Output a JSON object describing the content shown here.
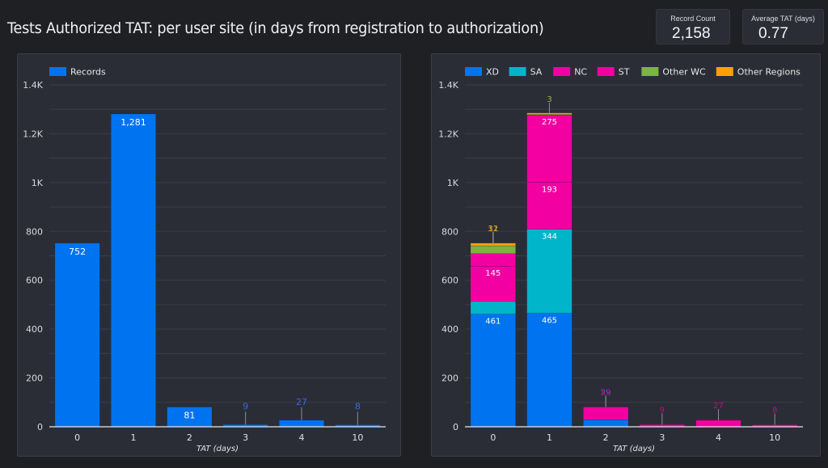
{
  "header": {
    "title": "Tests Authorized TAT: per user site (in days from registration to authorization)"
  },
  "kpis": [
    {
      "label": "Record Count",
      "value": "2,158"
    },
    {
      "label": "Average TAT (days)",
      "value": "0.77"
    }
  ],
  "colors": {
    "XD": "#0074f0",
    "SA": "#00b5c9",
    "NC": "#f200a2",
    "ST": "#f200a2",
    "Other WC": "#7cb342",
    "Other Regions": "#ffa000",
    "Records": "#0074f0"
  },
  "chart_data": [
    {
      "type": "bar",
      "title": "",
      "categories": [
        "0",
        "1",
        "2",
        "3",
        "4",
        "10"
      ],
      "series": [
        {
          "name": "Records",
          "values": [
            752,
            1281,
            81,
            9,
            27,
            8
          ]
        }
      ],
      "xlabel": "TAT (days)",
      "ylabel": "",
      "ylim": [
        0,
        1400
      ],
      "yticks": [
        0,
        200,
        400,
        600,
        800,
        1000,
        1200,
        1400
      ],
      "ytick_labels": [
        "0",
        "200",
        "400",
        "600",
        "800",
        "1K",
        "1.2K",
        "1.4K"
      ],
      "grid": true,
      "legend": "top-left",
      "data_labels": [
        "752",
        "1,281",
        "81",
        "9",
        "27",
        "8"
      ]
    },
    {
      "type": "bar",
      "stacked": true,
      "title": "",
      "categories": [
        "0",
        "1",
        "2",
        "3",
        "4",
        "10"
      ],
      "series": [
        {
          "name": "XD",
          "values": [
            461,
            465,
            29,
            0,
            0,
            0
          ]
        },
        {
          "name": "SA",
          "values": [
            52,
            344,
            0,
            0,
            0,
            0
          ]
        },
        {
          "name": "NC",
          "values": [
            145,
            193,
            0,
            0,
            0,
            0
          ]
        },
        {
          "name": "ST",
          "values": [
            51,
            275,
            52,
            9,
            27,
            8
          ]
        },
        {
          "name": "Other WC",
          "values": [
            32,
            3,
            0,
            0,
            0,
            0
          ]
        },
        {
          "name": "Other Regions",
          "values": [
            11,
            1,
            0,
            0,
            0,
            0
          ]
        }
      ],
      "xlabel": "TAT (days)",
      "ylabel": "",
      "ylim": [
        0,
        1400
      ],
      "yticks": [
        0,
        200,
        400,
        600,
        800,
        1000,
        1200,
        1400
      ],
      "ytick_labels": [
        "0",
        "200",
        "400",
        "600",
        "800",
        "1K",
        "1.2K",
        "1.4K"
      ],
      "grid": true,
      "legend": "top-left"
    }
  ]
}
